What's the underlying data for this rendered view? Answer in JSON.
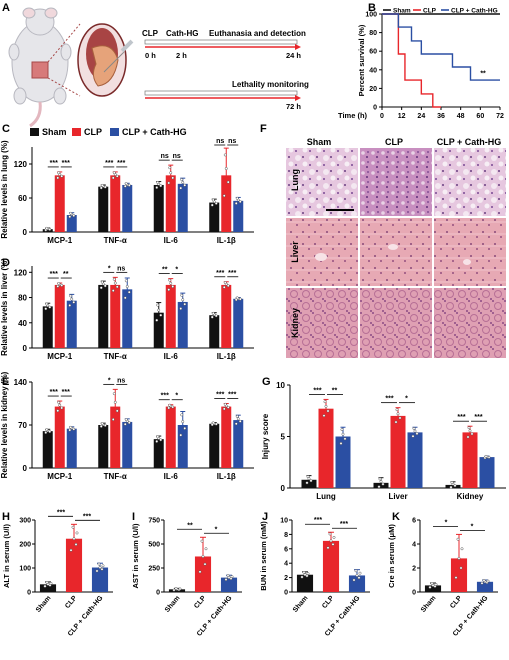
{
  "colors": {
    "sham": "#111111",
    "clp": "#e8262b",
    "cath": "#2b4fa3",
    "red_arrow": "#e8262b"
  },
  "panelA": {
    "letter": "A",
    "row1_labels": [
      "CLP",
      "Cath-HG",
      "Euthanasia and detection"
    ],
    "row1_times": [
      "0 h",
      "2 h",
      "24 h"
    ],
    "row2_label": "Lethality monitoring",
    "row2_time": "72 h",
    "icons": [
      "mouse-illustration",
      "cecum-icon",
      "needle-icon"
    ]
  },
  "chart_data": [
    {
      "panel": "B",
      "type": "line",
      "ylabel": "Percent survival (%)",
      "xlabel": "Time (h)",
      "xlim": [
        0,
        72
      ],
      "ylim": [
        0,
        100
      ],
      "xticks": [
        0,
        12,
        24,
        36,
        48,
        60,
        72
      ],
      "yticks": [
        0,
        20,
        40,
        60,
        80,
        100
      ],
      "legend": [
        "Sham",
        "CLP",
        "CLP + Cath-HG"
      ],
      "annotation": "**",
      "series": [
        {
          "name": "Sham",
          "x": [
            0,
            72
          ],
          "y": [
            100,
            100
          ]
        },
        {
          "name": "CLP",
          "x": [
            0,
            10,
            10,
            14,
            14,
            24,
            24,
            31,
            31,
            36
          ],
          "y": [
            100,
            100,
            57,
            57,
            29,
            29,
            14,
            14,
            0,
            0
          ]
        },
        {
          "name": "CLP + Cath-HG",
          "x": [
            0,
            10,
            10,
            18,
            18,
            24,
            24,
            43,
            43,
            54,
            54,
            72
          ],
          "y": [
            100,
            100,
            86,
            86,
            71,
            71,
            57,
            57,
            43,
            43,
            29,
            29
          ]
        }
      ]
    },
    {
      "panel": "C",
      "type": "bar",
      "ylabel": "Relative levels in lung (%)",
      "legend": [
        "Sham",
        "CLP",
        "CLP + Cath-HG"
      ],
      "categories": [
        "MCP-1",
        "TNF-α",
        "IL-6",
        "IL-1β"
      ],
      "ylim": [
        0,
        150
      ],
      "yticks": [
        0,
        60,
        120
      ],
      "series": [
        {
          "name": "Sham",
          "values": [
            5,
            80,
            83,
            52
          ],
          "err": [
            2,
            3,
            6,
            6
          ]
        },
        {
          "name": "CLP",
          "values": [
            100,
            100,
            100,
            100
          ],
          "err": [
            6,
            6,
            18,
            48
          ]
        },
        {
          "name": "CLP + Cath-HG",
          "values": [
            30,
            83,
            85,
            55
          ],
          "err": [
            4,
            3,
            10,
            6
          ]
        }
      ],
      "sig": [
        [
          "***",
          "***"
        ],
        [
          "***",
          "***"
        ],
        [
          "ns",
          "ns"
        ],
        [
          "ns",
          "ns"
        ]
      ]
    },
    {
      "panel": "D",
      "type": "bar",
      "ylabel": "Relative levels in liver (%)",
      "categories": [
        "MCP-1",
        "TNF-α",
        "IL-6",
        "IL-1β"
      ],
      "ylim": [
        0,
        130
      ],
      "yticks": [
        0,
        40,
        80,
        120
      ],
      "series": [
        {
          "name": "Sham",
          "values": [
            66,
            100,
            56,
            52
          ],
          "err": [
            5,
            6,
            16,
            4
          ]
        },
        {
          "name": "CLP",
          "values": [
            100,
            100,
            100,
            100
          ],
          "err": [
            3,
            12,
            10,
            5
          ]
        },
        {
          "name": "CLP + Cath-HG",
          "values": [
            75,
            93,
            73,
            78
          ],
          "err": [
            10,
            18,
            14,
            2
          ]
        }
      ],
      "sig": [
        [
          "***",
          "**"
        ],
        [
          "*",
          "ns"
        ],
        [
          "**",
          "*"
        ],
        [
          "***",
          "***"
        ]
      ]
    },
    {
      "panel": "E",
      "type": "bar",
      "ylabel": "Relative levels in kidney (%)",
      "categories": [
        "MCP-1",
        "TNF-α",
        "IL-6",
        "IL-1β"
      ],
      "ylim": [
        0,
        140
      ],
      "yticks": [
        0,
        70,
        140
      ],
      "series": [
        {
          "name": "Sham",
          "values": [
            60,
            70,
            47,
            72
          ],
          "err": [
            3,
            3,
            5,
            2
          ]
        },
        {
          "name": "CLP",
          "values": [
            100,
            100,
            100,
            100
          ],
          "err": [
            9,
            28,
            3,
            5
          ]
        },
        {
          "name": "CLP + Cath-HG",
          "values": [
            64,
            75,
            70,
            78
          ],
          "err": [
            3,
            5,
            22,
            8
          ]
        }
      ],
      "sig": [
        [
          "***",
          "***"
        ],
        [
          "*",
          "ns"
        ],
        [
          "***",
          "*"
        ],
        [
          "***",
          "***"
        ]
      ]
    },
    {
      "panel": "G",
      "type": "bar",
      "ylabel": "Injury score",
      "categories": [
        "Lung",
        "Liver",
        "Kidney"
      ],
      "ylim": [
        0,
        10
      ],
      "yticks": [
        0,
        5,
        10
      ],
      "series": [
        {
          "name": "Sham",
          "values": [
            0.8,
            0.5,
            0.3
          ],
          "err": [
            0.4,
            0.5,
            0.3
          ]
        },
        {
          "name": "CLP",
          "values": [
            7.7,
            7.0,
            5.4
          ],
          "err": [
            0.9,
            0.8,
            0.6
          ]
        },
        {
          "name": "CLP + Cath-HG",
          "values": [
            5.0,
            5.4,
            3.0
          ],
          "err": [
            0.9,
            0.5,
            0.1
          ]
        }
      ],
      "sig": [
        [
          "***",
          "**"
        ],
        [
          "***",
          "*"
        ],
        [
          "***",
          "***"
        ]
      ]
    },
    {
      "panel": "H",
      "type": "bar",
      "ylabel": "ALT in serum (U/l)",
      "categories": [
        "Sham",
        "CLP",
        "CLP + Cath-HG"
      ],
      "ylim": [
        0,
        300
      ],
      "yticks": [
        0,
        100,
        200,
        300
      ],
      "values": [
        32,
        222,
        102
      ],
      "err": [
        10,
        60,
        18
      ],
      "sig": [
        "***",
        "***"
      ]
    },
    {
      "panel": "I",
      "type": "bar",
      "ylabel": "AST in serum (U/l)",
      "categories": [
        "Sham",
        "CLP",
        "CLP + Cath-HG"
      ],
      "ylim": [
        0,
        750
      ],
      "yticks": [
        0,
        250,
        500,
        750
      ],
      "values": [
        28,
        370,
        150
      ],
      "err": [
        10,
        200,
        25
      ],
      "sig": [
        "**",
        "*"
      ]
    },
    {
      "panel": "J",
      "type": "bar",
      "ylabel": "BUN in serum (mM)",
      "categories": [
        "Sham",
        "CLP",
        "CLP + Cath-HG"
      ],
      "ylim": [
        0,
        10
      ],
      "yticks": [
        0,
        2,
        4,
        6,
        8,
        10
      ],
      "values": [
        2.4,
        7.1,
        2.3
      ],
      "err": [
        0.4,
        1.2,
        0.8
      ],
      "sig": [
        "***",
        "***"
      ]
    },
    {
      "panel": "K",
      "type": "bar",
      "ylabel": "Cre in serum (μM)",
      "categories": [
        "Sham",
        "CLP",
        "CLP + Cath-HG"
      ],
      "ylim": [
        0,
        6
      ],
      "yticks": [
        0,
        2,
        4,
        6
      ],
      "values": [
        0.55,
        2.8,
        0.85
      ],
      "err": [
        0.2,
        2.0,
        0.15
      ],
      "sig": [
        "*",
        "*"
      ]
    }
  ],
  "panelF": {
    "letter": "F",
    "columns": [
      "Sham",
      "CLP",
      "CLP + Cath-HG"
    ],
    "rows": [
      "Lung",
      "Liver",
      "Kidney"
    ],
    "scale_bar": true
  }
}
